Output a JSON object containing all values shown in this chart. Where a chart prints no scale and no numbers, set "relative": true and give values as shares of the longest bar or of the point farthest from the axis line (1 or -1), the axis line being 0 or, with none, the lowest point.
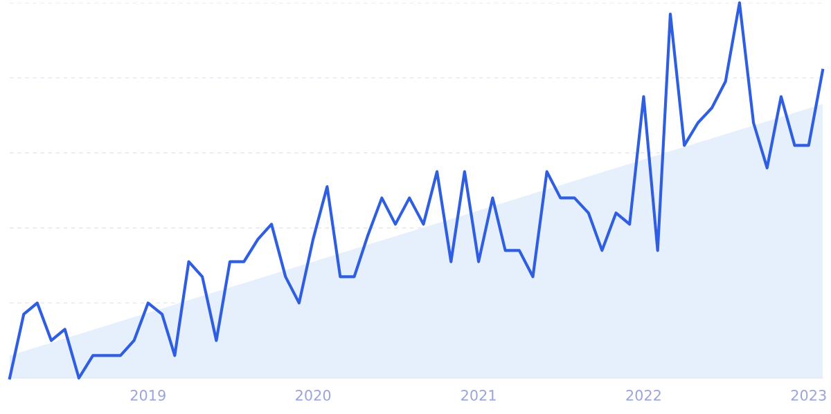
{
  "chart_data": {
    "type": "line",
    "relative": true,
    "x": [
      "2018-03",
      "2018-04",
      "2018-05",
      "2018-06",
      "2018-07",
      "2018-08",
      "2018-09",
      "2018-10",
      "2018-11",
      "2018-12",
      "2019-01",
      "2019-02",
      "2019-03",
      "2019-04",
      "2019-05",
      "2019-06",
      "2019-07",
      "2019-08",
      "2019-09",
      "2019-10",
      "2019-11",
      "2019-12",
      "2020-01",
      "2020-02",
      "2020-03",
      "2020-04",
      "2020-05",
      "2020-06",
      "2020-07",
      "2020-08",
      "2020-09",
      "2020-10",
      "2020-11",
      "2020-12",
      "2021-01",
      "2021-02",
      "2021-03",
      "2021-04",
      "2021-05",
      "2021-06",
      "2021-07",
      "2021-08",
      "2021-09",
      "2021-10",
      "2021-11",
      "2021-12",
      "2022-01",
      "2022-02",
      "2022-03",
      "2022-04",
      "2022-05",
      "2022-06",
      "2022-07",
      "2022-08",
      "2022-09",
      "2022-10",
      "2022-11",
      "2022-12",
      "2023-01",
      "2023-02"
    ],
    "series": [
      {
        "type": "area",
        "color": "#e6effc",
        "x": [
          "2018-03",
          "2023-02"
        ],
        "values": [
          0.06,
          0.73
        ]
      },
      {
        "color": "#2f5fe0",
        "values": [
          0,
          0.17,
          0.2,
          0.1,
          0.13,
          0,
          0.06,
          0.06,
          0.06,
          0.1,
          0.2,
          0.17,
          0.06,
          0.31,
          0.27,
          0.1,
          0.31,
          0.31,
          0.37,
          0.41,
          0.27,
          0.2,
          0.37,
          0.51,
          0.27,
          0.27,
          0.38,
          0.48,
          0.41,
          0.48,
          0.41,
          0.55,
          0.31,
          0.55,
          0.31,
          0.48,
          0.34,
          0.34,
          0.27,
          0.55,
          0.48,
          0.48,
          0.44,
          0.34,
          0.44,
          0.41,
          0.75,
          0.34,
          0.97,
          0.62,
          0.68,
          0.72,
          0.79,
          1,
          0.68,
          0.56,
          0.75,
          0.62,
          0.62,
          0.82
        ]
      }
    ],
    "xlim": [
      "2018-03",
      "2023-02"
    ],
    "xticks": [
      {
        "value": "2019-01",
        "label": "2019"
      },
      {
        "value": "2020-01",
        "label": "2020"
      },
      {
        "value": "2021-01",
        "label": "2021"
      },
      {
        "value": "2022-01",
        "label": "2022"
      },
      {
        "value": "2023-01",
        "label": "2023"
      }
    ],
    "grid": "y",
    "tick_labels": "x",
    "legend": false
  }
}
